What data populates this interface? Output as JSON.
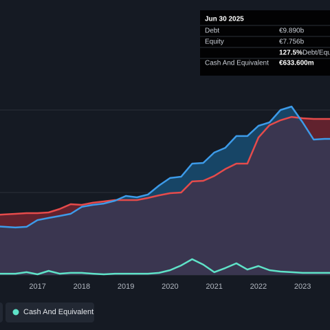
{
  "chart_data": {
    "type": "line",
    "x": [
      2016.0,
      2016.25,
      2016.5,
      2016.75,
      2017.0,
      2017.25,
      2017.5,
      2017.75,
      2018.0,
      2018.25,
      2018.5,
      2018.75,
      2019.0,
      2019.25,
      2019.5,
      2019.75,
      2020.0,
      2020.25,
      2020.5,
      2020.75,
      2021.0,
      2021.25,
      2021.5,
      2021.75,
      2022.0,
      2022.25,
      2022.5,
      2022.75,
      2023.0,
      2023.25,
      2023.5,
      2023.75
    ],
    "series": [
      {
        "name": "Debt",
        "color": "#e64b4b",
        "values": [
          3.63,
          3.67,
          3.71,
          3.75,
          3.75,
          3.79,
          4.0,
          4.29,
          4.25,
          4.38,
          4.46,
          4.54,
          4.54,
          4.54,
          4.67,
          4.83,
          4.96,
          5.0,
          5.67,
          5.71,
          6.0,
          6.42,
          6.75,
          6.75,
          8.33,
          9.08,
          9.38,
          9.58,
          9.5,
          9.46,
          9.46,
          9.46
        ]
      },
      {
        "name": "Equity",
        "color": "#3d9be9",
        "values": [
          2.96,
          2.92,
          2.88,
          2.92,
          3.33,
          3.46,
          3.58,
          3.71,
          4.13,
          4.25,
          4.33,
          4.5,
          4.79,
          4.71,
          4.88,
          5.42,
          5.88,
          5.96,
          6.75,
          6.79,
          7.42,
          7.71,
          8.42,
          8.42,
          9.04,
          9.25,
          10.0,
          10.21,
          9.25,
          8.21,
          8.25,
          8.25
        ]
      },
      {
        "name": "Cash And Equivalent",
        "color": "#5fe3c8",
        "values": [
          0.08,
          0.08,
          0.08,
          0.17,
          0.04,
          0.25,
          0.08,
          0.13,
          0.13,
          0.08,
          0.04,
          0.08,
          0.08,
          0.08,
          0.08,
          0.13,
          0.29,
          0.58,
          0.96,
          0.63,
          0.17,
          0.42,
          0.71,
          0.33,
          0.54,
          0.29,
          0.21,
          0.17,
          0.13,
          0.13,
          0.13,
          0.13
        ]
      }
    ],
    "xlim": [
      2016.15,
      2023.62
    ],
    "xticks": [
      2017,
      2018,
      2019,
      2020,
      2021,
      2022,
      2023
    ],
    "ylim": [
      -0.5,
      16.5
    ],
    "yticks": [
      0,
      5,
      10
    ],
    "grid": true,
    "tooltip": {
      "date": "Jun 30 2025",
      "rows": [
        {
          "label": "Debt",
          "value": "€9.890b"
        },
        {
          "label": "Equity",
          "value": "€7.756b"
        }
      ],
      "ratio": "127.5%",
      "ratio_label": "Debt/Equity",
      "cash_label": "Cash And Equivalent",
      "cash_value": "€633.600m"
    }
  }
}
